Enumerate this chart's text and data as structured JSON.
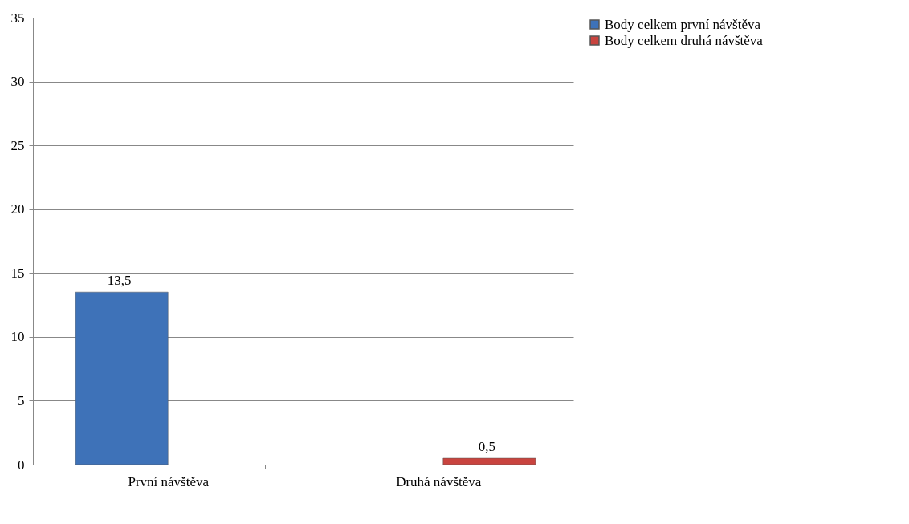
{
  "chart_data": {
    "type": "bar",
    "categories": [
      "První návštěva",
      "Druhá návštěva"
    ],
    "series": [
      {
        "name": "Body celkem první návštěva",
        "color": "#3e72b8",
        "values": [
          13.5,
          null
        ],
        "value_labels": [
          "13,5",
          null
        ]
      },
      {
        "name": "Body celkem druhá návštěva",
        "color": "#c9443f",
        "values": [
          null,
          0.5
        ],
        "value_labels": [
          null,
          "0,5"
        ]
      }
    ],
    "ylim": [
      0,
      35
    ],
    "yticks": [
      0,
      5,
      10,
      15,
      20,
      25,
      30,
      35
    ],
    "grid": "y",
    "legend": "right"
  }
}
